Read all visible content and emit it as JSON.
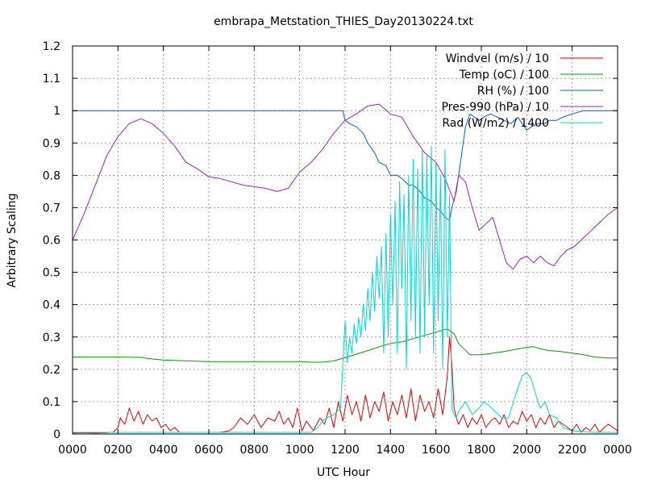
{
  "chart_data": {
    "type": "line",
    "title": "embrapa_Metstation_THIES_Day20130224.txt",
    "xlabel": "UTC Hour",
    "ylabel": "Arbitrary Scaling",
    "xlim": [
      0,
      24
    ],
    "ylim": [
      0,
      1.2
    ],
    "grid": true,
    "legend_position": "top-right",
    "x_ticks": [
      {
        "value": 0,
        "label": "0000"
      },
      {
        "value": 2,
        "label": "0200"
      },
      {
        "value": 4,
        "label": "0400"
      },
      {
        "value": 6,
        "label": "0600"
      },
      {
        "value": 8,
        "label": "0800"
      },
      {
        "value": 10,
        "label": "1000"
      },
      {
        "value": 12,
        "label": "1200"
      },
      {
        "value": 14,
        "label": "1400"
      },
      {
        "value": 16,
        "label": "1600"
      },
      {
        "value": 18,
        "label": "1800"
      },
      {
        "value": 20,
        "label": "2000"
      },
      {
        "value": 22,
        "label": "2200"
      },
      {
        "value": 24,
        "label": "0000"
      }
    ],
    "y_ticks": [
      {
        "value": 0,
        "label": "0"
      },
      {
        "value": 0.1,
        "label": "0.1"
      },
      {
        "value": 0.2,
        "label": "0.2"
      },
      {
        "value": 0.3,
        "label": "0.3"
      },
      {
        "value": 0.4,
        "label": "0.4"
      },
      {
        "value": 0.5,
        "label": "0.5"
      },
      {
        "value": 0.6,
        "label": "0.6"
      },
      {
        "value": 0.7,
        "label": "0.7"
      },
      {
        "value": 0.8,
        "label": "0.8"
      },
      {
        "value": 0.9,
        "label": "0.9"
      },
      {
        "value": 1,
        "label": "1"
      },
      {
        "value": 1.1,
        "label": "1.1"
      },
      {
        "value": 1.2,
        "label": "1.2"
      }
    ],
    "series": [
      {
        "name": "Windvel (m/s) / 10",
        "color": "#e00000",
        "x": [
          0,
          0.5,
          1,
          1.5,
          1.8,
          2.0,
          2.1,
          2.3,
          2.5,
          2.7,
          2.9,
          3.1,
          3.3,
          3.5,
          3.7,
          3.9,
          4.1,
          4.3,
          4.5,
          4.7,
          5.0,
          5.5,
          6.0,
          6.5,
          6.9,
          7.1,
          7.4,
          7.7,
          8.0,
          8.3,
          8.6,
          8.9,
          9.1,
          9.3,
          9.5,
          9.7,
          9.9,
          10.1,
          10.3,
          10.6,
          10.9,
          11.1,
          11.3,
          11.5,
          11.7,
          11.9,
          12.1,
          12.3,
          12.5,
          12.7,
          12.9,
          13.1,
          13.3,
          13.5,
          13.7,
          13.9,
          14.1,
          14.3,
          14.5,
          14.7,
          14.9,
          15.1,
          15.3,
          15.5,
          15.7,
          15.9,
          16.1,
          16.3,
          16.5,
          16.6,
          16.7,
          16.8,
          16.9,
          17.0,
          17.2,
          17.4,
          17.6,
          17.8,
          18.0,
          18.2,
          18.4,
          18.6,
          18.8,
          19.0,
          19.2,
          19.4,
          19.6,
          19.8,
          20.0,
          20.2,
          20.4,
          20.6,
          20.8,
          21.0,
          21.2,
          21.4,
          21.6,
          21.8,
          22.0,
          22.2,
          22.4,
          22.6,
          22.8,
          23.0,
          23.2,
          23.4,
          23.6,
          23.8,
          24.0
        ],
        "values": [
          0.003,
          0.004,
          0.003,
          0.004,
          0.006,
          0.02,
          0.05,
          0.03,
          0.08,
          0.04,
          0.07,
          0.03,
          0.06,
          0.04,
          0.05,
          0.02,
          0.03,
          0.01,
          0.02,
          0.005,
          0.005,
          0.005,
          0.005,
          0.005,
          0.01,
          0.02,
          0.05,
          0.03,
          0.06,
          0.02,
          0.05,
          0.04,
          0.07,
          0.03,
          0.05,
          0.02,
          0.08,
          0.01,
          0.04,
          0.01,
          0.05,
          0.03,
          0.08,
          0.02,
          0.1,
          0.04,
          0.12,
          0.06,
          0.1,
          0.04,
          0.12,
          0.05,
          0.1,
          0.07,
          0.13,
          0.04,
          0.1,
          0.06,
          0.12,
          0.05,
          0.14,
          0.04,
          0.12,
          0.07,
          0.1,
          0.05,
          0.14,
          0.06,
          0.18,
          0.3,
          0.22,
          0.08,
          0.05,
          0.03,
          0.06,
          0.02,
          0.05,
          0.03,
          0.06,
          0.02,
          0.04,
          0.05,
          0.03,
          0.06,
          0.02,
          0.04,
          0.03,
          0.07,
          0.04,
          0.06,
          0.02,
          0.05,
          0.03,
          0.06,
          0.02,
          0.04,
          0.03,
          0.02,
          0.01,
          0.03,
          0.005,
          0.02,
          0.01,
          0.03,
          0.005,
          0.02,
          0.03,
          0.02,
          0.01
        ]
      },
      {
        "name": "Temp (oC) / 100",
        "color": "#00a000",
        "x": [
          0,
          1,
          2,
          3,
          3.5,
          4,
          5,
          6,
          7,
          8,
          9,
          10,
          10.5,
          11,
          11.5,
          12,
          12.5,
          13,
          13.5,
          14,
          14.5,
          15,
          15.5,
          16,
          16.5,
          16.8,
          17,
          17.5,
          18,
          18.5,
          19,
          19.5,
          20,
          20.3,
          20.5,
          21,
          21.5,
          22,
          22.5,
          23,
          23.5,
          24
        ],
        "values": [
          0.238,
          0.238,
          0.238,
          0.237,
          0.232,
          0.229,
          0.226,
          0.224,
          0.224,
          0.224,
          0.224,
          0.224,
          0.222,
          0.222,
          0.226,
          0.236,
          0.247,
          0.258,
          0.27,
          0.28,
          0.285,
          0.295,
          0.305,
          0.315,
          0.325,
          0.31,
          0.28,
          0.245,
          0.245,
          0.25,
          0.255,
          0.262,
          0.268,
          0.27,
          0.265,
          0.258,
          0.255,
          0.25,
          0.245,
          0.238,
          0.235,
          0.235
        ]
      },
      {
        "name": "RH (%) / 100",
        "color": "#0060d0",
        "x": [
          0,
          4,
          8,
          11.5,
          11.9,
          12.0,
          12.2,
          12.5,
          12.8,
          13.0,
          13.3,
          13.5,
          13.8,
          14.0,
          14.3,
          14.5,
          14.8,
          15.0,
          15.3,
          15.5,
          15.8,
          16.0,
          16.2,
          16.4,
          16.6,
          16.7,
          16.9,
          17.1,
          17.3,
          17.5,
          17.7,
          17.9,
          18.1,
          18.4,
          18.7,
          19.0,
          19.3,
          19.6,
          19.8,
          20.0,
          20.2,
          20.5,
          20.8,
          21.0,
          21.3,
          21.6,
          22.0,
          22.5,
          23,
          24
        ],
        "values": [
          1,
          1,
          1,
          1,
          1,
          0.97,
          0.96,
          0.95,
          0.93,
          0.9,
          0.87,
          0.84,
          0.83,
          0.8,
          0.8,
          0.79,
          0.77,
          0.77,
          0.75,
          0.73,
          0.72,
          0.7,
          0.69,
          0.67,
          0.66,
          0.7,
          0.75,
          0.85,
          0.95,
          0.99,
          0.98,
          0.97,
          0.98,
          0.99,
          0.98,
          0.97,
          0.96,
          0.98,
          0.96,
          0.94,
          0.95,
          0.96,
          0.96,
          0.97,
          0.97,
          0.98,
          0.99,
          1,
          1,
          1
        ]
      },
      {
        "name": "Pres-990 (hPa) / 10",
        "color": "#a020d0",
        "x": [
          0,
          0.5,
          1,
          1.5,
          2,
          2.5,
          3,
          3.5,
          4,
          4.5,
          5,
          5.5,
          6,
          6.5,
          7,
          7.5,
          8,
          8.5,
          9,
          9.5,
          10,
          10.5,
          11,
          11.5,
          12,
          12.5,
          13,
          13.5,
          14,
          14.5,
          15,
          15.5,
          16,
          16.4,
          16.8,
          17,
          17.3,
          17.6,
          17.9,
          18.2,
          18.5,
          18.8,
          19.1,
          19.4,
          19.7,
          20,
          20.3,
          20.6,
          20.9,
          21.2,
          21.5,
          21.8,
          22.1,
          22.4,
          22.7,
          23,
          23.3,
          23.6,
          24
        ],
        "values": [
          0.6,
          0.68,
          0.77,
          0.86,
          0.92,
          0.96,
          0.975,
          0.96,
          0.93,
          0.89,
          0.84,
          0.82,
          0.795,
          0.79,
          0.78,
          0.77,
          0.765,
          0.76,
          0.75,
          0.76,
          0.81,
          0.84,
          0.88,
          0.93,
          0.97,
          0.99,
          1.015,
          1.02,
          0.99,
          0.98,
          0.92,
          0.87,
          0.84,
          0.79,
          0.72,
          0.8,
          0.78,
          0.7,
          0.63,
          0.65,
          0.67,
          0.6,
          0.53,
          0.51,
          0.54,
          0.55,
          0.53,
          0.55,
          0.53,
          0.52,
          0.55,
          0.57,
          0.58,
          0.6,
          0.62,
          0.64,
          0.66,
          0.68,
          0.7
        ]
      },
      {
        "name": "Rad (W/m2) / 1400",
        "color": "#00d8d8",
        "x": [
          0,
          4,
          8,
          10.5,
          10.8,
          11.0,
          11.2,
          11.5,
          11.8,
          12.0,
          12.1,
          12.2,
          12.3,
          12.4,
          12.5,
          12.6,
          12.7,
          12.8,
          12.9,
          13.0,
          13.1,
          13.2,
          13.3,
          13.4,
          13.5,
          13.6,
          13.7,
          13.8,
          13.9,
          14.0,
          14.1,
          14.2,
          14.3,
          14.4,
          14.5,
          14.6,
          14.7,
          14.8,
          14.9,
          15.0,
          15.1,
          15.2,
          15.3,
          15.4,
          15.5,
          15.6,
          15.7,
          15.8,
          15.9,
          16.0,
          16.1,
          16.2,
          16.3,
          16.4,
          16.5,
          16.6,
          16.7,
          16.8,
          16.9,
          17.0,
          17.3,
          17.6,
          17.9,
          18.1,
          18.3,
          18.6,
          18.9,
          19.2,
          19.5,
          19.8,
          20.0,
          20.2,
          20.4,
          20.6,
          20.8,
          21.0,
          21.3,
          21.6,
          22,
          23,
          24
        ],
        "values": [
          0.005,
          0.005,
          0.005,
          0.005,
          0.02,
          0.04,
          0.05,
          0.06,
          0.08,
          0.35,
          0.22,
          0.3,
          0.25,
          0.34,
          0.28,
          0.36,
          0.3,
          0.4,
          0.32,
          0.45,
          0.35,
          0.5,
          0.38,
          0.55,
          0.42,
          0.58,
          0.25,
          0.62,
          0.3,
          0.68,
          0.4,
          0.72,
          0.25,
          0.78,
          0.45,
          0.74,
          0.2,
          0.8,
          0.35,
          0.85,
          0.3,
          0.82,
          0.25,
          0.88,
          0.3,
          0.86,
          0.4,
          0.89,
          0.25,
          0.84,
          0.35,
          0.8,
          0.2,
          0.88,
          0.3,
          0.74,
          0.08,
          0.06,
          0.05,
          0.07,
          0.1,
          0.06,
          0.08,
          0.1,
          0.09,
          0.07,
          0.05,
          0.05,
          0.12,
          0.18,
          0.19,
          0.17,
          0.12,
          0.08,
          0.1,
          0.06,
          0.05,
          0.02,
          0.01,
          0.005,
          0.005
        ]
      }
    ]
  }
}
